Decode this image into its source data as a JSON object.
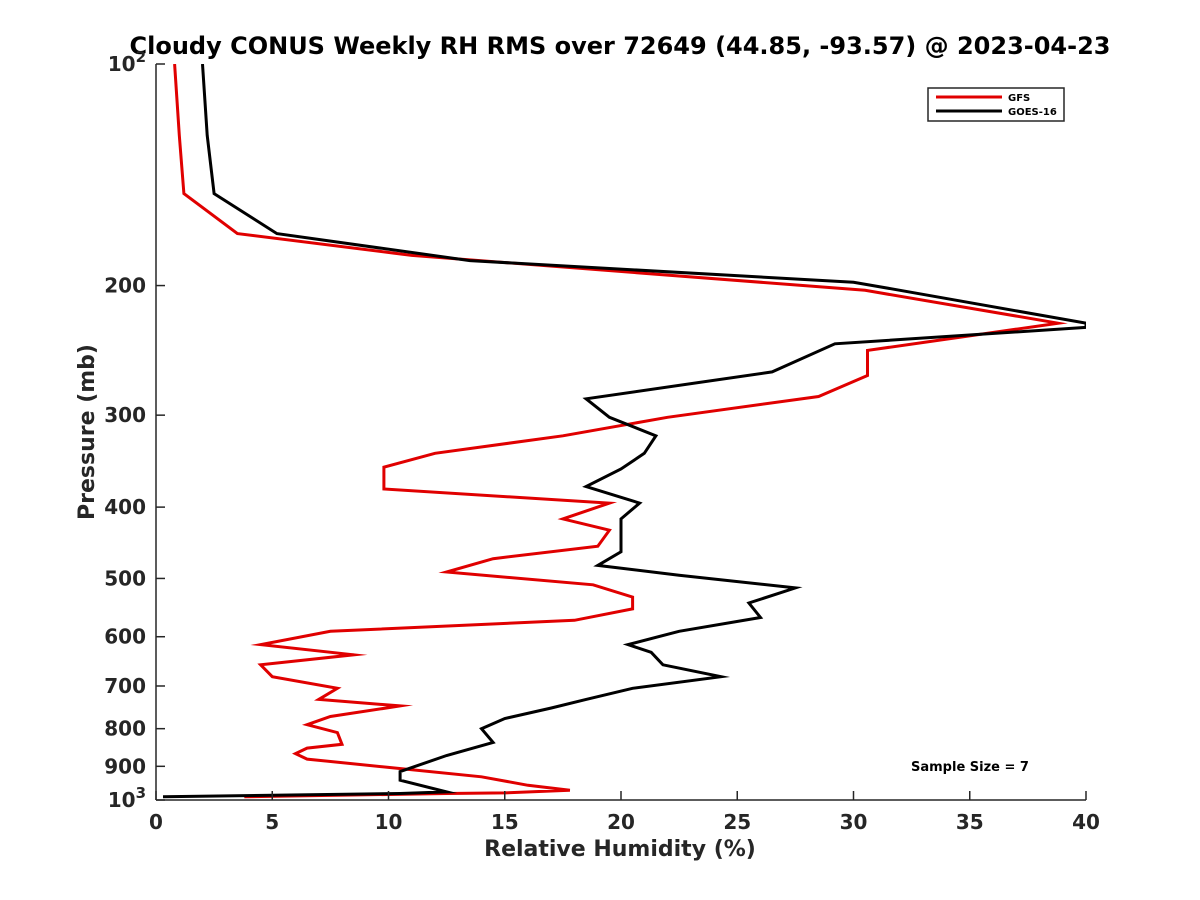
{
  "chart_data": {
    "type": "line",
    "title": "Cloudy CONUS Weekly RH RMS over 72649 (44.85, -93.57) @ 2023-04-23",
    "xlabel": "Relative Humidity (%)",
    "ylabel": "Pressure (mb)",
    "xlim": [
      0,
      40
    ],
    "ylim": [
      100,
      1000
    ],
    "y_scale": "log",
    "y_reversed": true,
    "grid": false,
    "legend_position": "top-right",
    "x_ticks": [
      0,
      5,
      10,
      15,
      20,
      25,
      30,
      35,
      40
    ],
    "y_ticks": [
      {
        "value": 100,
        "base": "10",
        "exp": "2"
      },
      {
        "value": 200,
        "label": "200"
      },
      {
        "value": 300,
        "label": "300"
      },
      {
        "value": 400,
        "label": "400"
      },
      {
        "value": 500,
        "label": "500"
      },
      {
        "value": 600,
        "label": "600"
      },
      {
        "value": 700,
        "label": "700"
      },
      {
        "value": 800,
        "label": "800"
      },
      {
        "value": 900,
        "label": "900"
      },
      {
        "value": 1000,
        "base": "10",
        "exp": "3"
      }
    ],
    "series": [
      {
        "name": "GFS",
        "color": "#e00000",
        "points": [
          [
            0.8,
            100
          ],
          [
            1.0,
            125
          ],
          [
            1.2,
            150
          ],
          [
            3.5,
            170
          ],
          [
            11.0,
            182
          ],
          [
            30.5,
            203
          ],
          [
            38.8,
            225
          ],
          [
            30.6,
            245
          ],
          [
            30.6,
            265
          ],
          [
            28.5,
            283
          ],
          [
            22.0,
            302
          ],
          [
            17.5,
            320
          ],
          [
            12.0,
            338
          ],
          [
            9.8,
            353
          ],
          [
            9.8,
            378
          ],
          [
            19.5,
            395
          ],
          [
            17.5,
            415
          ],
          [
            19.5,
            430
          ],
          [
            19.0,
            452
          ],
          [
            14.5,
            470
          ],
          [
            12.5,
            490
          ],
          [
            18.8,
            510
          ],
          [
            20.5,
            530
          ],
          [
            20.5,
            550
          ],
          [
            18.0,
            570
          ],
          [
            7.5,
            590
          ],
          [
            4.5,
            615
          ],
          [
            8.5,
            635
          ],
          [
            4.5,
            655
          ],
          [
            5.0,
            680
          ],
          [
            7.8,
            705
          ],
          [
            7.0,
            730
          ],
          [
            10.5,
            745
          ],
          [
            7.5,
            770
          ],
          [
            6.5,
            790
          ],
          [
            7.8,
            810
          ],
          [
            8.0,
            840
          ],
          [
            6.5,
            850
          ],
          [
            6.0,
            865
          ],
          [
            6.5,
            880
          ],
          [
            10.0,
            903
          ],
          [
            14.0,
            930
          ],
          [
            16.0,
            955
          ],
          [
            17.8,
            970
          ],
          [
            15.0,
            978
          ],
          [
            12.5,
            980
          ],
          [
            3.8,
            990
          ]
        ]
      },
      {
        "name": "GOES-16",
        "color": "#000000",
        "points": [
          [
            2.0,
            100
          ],
          [
            2.2,
            125
          ],
          [
            2.5,
            150
          ],
          [
            5.2,
            170
          ],
          [
            13.5,
            185
          ],
          [
            30.0,
            198
          ],
          [
            32.0,
            203
          ],
          [
            40.0,
            225
          ],
          [
            40.0,
            228
          ],
          [
            29.2,
            240
          ],
          [
            26.5,
            262
          ],
          [
            18.5,
            285
          ],
          [
            19.5,
            302
          ],
          [
            21.5,
            320
          ],
          [
            21.0,
            338
          ],
          [
            20.0,
            355
          ],
          [
            18.5,
            375
          ],
          [
            20.8,
            395
          ],
          [
            20.0,
            415
          ],
          [
            20.0,
            440
          ],
          [
            20.0,
            460
          ],
          [
            19.0,
            480
          ],
          [
            22.5,
            495
          ],
          [
            27.5,
            515
          ],
          [
            25.5,
            540
          ],
          [
            26.0,
            565
          ],
          [
            22.5,
            590
          ],
          [
            20.3,
            615
          ],
          [
            21.3,
            630
          ],
          [
            21.8,
            655
          ],
          [
            24.3,
            680
          ],
          [
            20.5,
            705
          ],
          [
            18.5,
            730
          ],
          [
            17.0,
            750
          ],
          [
            15.0,
            775
          ],
          [
            14.0,
            800
          ],
          [
            14.5,
            835
          ],
          [
            12.5,
            870
          ],
          [
            10.5,
            915
          ],
          [
            10.5,
            940
          ],
          [
            12.5,
            975
          ],
          [
            10.5,
            980
          ],
          [
            0.3,
            990
          ]
        ]
      }
    ],
    "annotations": [
      {
        "text": "Sample Size = 7"
      }
    ]
  }
}
